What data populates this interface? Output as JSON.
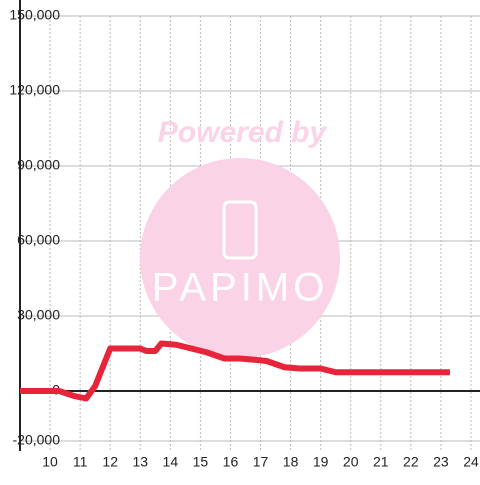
{
  "chart_data": {
    "type": "line",
    "watermark": {
      "top": "Powered by",
      "brand": "PAPIMO"
    },
    "x": [
      9,
      10.3,
      10.8,
      11.2,
      11.5,
      12,
      13,
      13.2,
      13.5,
      13.7,
      14.2,
      15.2,
      15.8,
      16.3,
      16.8,
      17.2,
      17.8,
      18.3,
      19,
      19.5,
      23.3
    ],
    "series": [
      {
        "color": "#e8243a",
        "values": [
          0,
          0,
          -2000,
          -3000,
          2000,
          17000,
          17000,
          16000,
          16000,
          19000,
          18500,
          15500,
          13000,
          13000,
          12500,
          12000,
          9500,
          9000,
          9000,
          7500,
          7500
        ]
      }
    ],
    "xlim": [
      9,
      24.3
    ],
    "ylim": [
      -20000,
      150000
    ],
    "xticks": [
      10,
      11,
      12,
      13,
      14,
      15,
      16,
      17,
      18,
      19,
      20,
      21,
      22,
      23,
      24
    ],
    "yticks": [
      {
        "value": -20000,
        "label": "-20,000"
      },
      0,
      {
        "value": 30000,
        "label": "30,000"
      },
      {
        "value": 60000,
        "label": "60,000"
      },
      {
        "value": 90000,
        "label": "90,000"
      },
      {
        "value": 120000,
        "label": "120,000"
      },
      {
        "value": 150000,
        "label": "150,000"
      }
    ],
    "grid": true
  }
}
